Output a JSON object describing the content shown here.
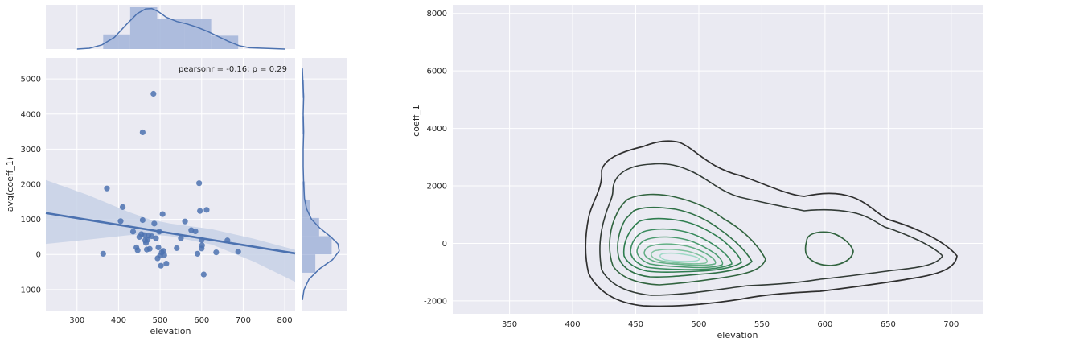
{
  "theme": {
    "panel_bg": "#EAEAF2",
    "grid": "#FFFFFF",
    "accent": "#4C72B0",
    "accent_light": "#A6B7DA",
    "band": "#C7D1E6",
    "contour_dark": "#2F2F2F",
    "contour_green": "#2E7D4F",
    "contour_light": "#9ED9C6"
  },
  "chart_data": [
    {
      "type": "scatter",
      "id": "jointplot",
      "xlabel": "elevation",
      "ylabel": "avg(coeff_1)",
      "annotation": "pearsonr = -0.16; p = 0.29",
      "xlim": [
        225,
        825
      ],
      "ylim": [
        -1600,
        5600
      ],
      "xticks": [
        300,
        400,
        500,
        600,
        700,
        800
      ],
      "yticks": [
        -1000,
        0,
        1000,
        2000,
        3000,
        4000,
        5000
      ],
      "points": [
        [
          363,
          20
        ],
        [
          372,
          1880
        ],
        [
          405,
          950
        ],
        [
          410,
          1350
        ],
        [
          435,
          650
        ],
        [
          443,
          200
        ],
        [
          446,
          120
        ],
        [
          450,
          500
        ],
        [
          455,
          580
        ],
        [
          458,
          3480
        ],
        [
          458,
          980
        ],
        [
          462,
          550
        ],
        [
          464,
          400
        ],
        [
          466,
          330
        ],
        [
          468,
          140
        ],
        [
          470,
          420
        ],
        [
          472,
          540
        ],
        [
          475,
          160
        ],
        [
          480,
          520
        ],
        [
          484,
          4580
        ],
        [
          486,
          880
        ],
        [
          490,
          460
        ],
        [
          494,
          -110
        ],
        [
          496,
          200
        ],
        [
          498,
          650
        ],
        [
          500,
          -30
        ],
        [
          502,
          -320
        ],
        [
          504,
          60
        ],
        [
          506,
          1150
        ],
        [
          508,
          100
        ],
        [
          510,
          -20
        ],
        [
          515,
          -260
        ],
        [
          540,
          180
        ],
        [
          550,
          460
        ],
        [
          560,
          940
        ],
        [
          575,
          690
        ],
        [
          585,
          660
        ],
        [
          590,
          20
        ],
        [
          594,
          2030
        ],
        [
          596,
          1240
        ],
        [
          600,
          170
        ],
        [
          600,
          410
        ],
        [
          601,
          260
        ],
        [
          605,
          -570
        ],
        [
          612,
          1270
        ],
        [
          635,
          60
        ],
        [
          662,
          400
        ],
        [
          688,
          80
        ]
      ],
      "regression": {
        "x": [
          225,
          825
        ],
        "y": [
          1180,
          30
        ]
      },
      "ci_band": {
        "x": [
          225,
          325,
          425,
          475,
          525,
          625,
          725,
          825
        ],
        "upper": [
          2120,
          1700,
          1210,
          1000,
          880,
          720,
          450,
          130
        ],
        "lower": [
          300,
          420,
          550,
          570,
          520,
          280,
          -200,
          -780
        ]
      },
      "marginal_x": {
        "hist_bins": [
          [
            363,
            428,
            0.35
          ],
          [
            428,
            493,
            1.0
          ],
          [
            493,
            558,
            0.72
          ],
          [
            558,
            623,
            0.72
          ],
          [
            623,
            688,
            0.32
          ]
        ],
        "kde": [
          [
            300,
            0.0
          ],
          [
            330,
            0.02
          ],
          [
            360,
            0.1
          ],
          [
            390,
            0.28
          ],
          [
            420,
            0.6
          ],
          [
            445,
            0.85
          ],
          [
            465,
            0.96
          ],
          [
            480,
            0.97
          ],
          [
            495,
            0.9
          ],
          [
            515,
            0.76
          ],
          [
            540,
            0.66
          ],
          [
            565,
            0.6
          ],
          [
            590,
            0.52
          ],
          [
            615,
            0.42
          ],
          [
            640,
            0.3
          ],
          [
            665,
            0.18
          ],
          [
            690,
            0.08
          ],
          [
            715,
            0.03
          ],
          [
            800,
            0.0
          ]
        ]
      },
      "marginal_y": {
        "hist_bins": [
          [
            -520,
            0,
            0.31
          ],
          [
            0,
            520,
            0.7
          ],
          [
            520,
            1040,
            0.4
          ],
          [
            1040,
            1560,
            0.19
          ],
          [
            1560,
            2080,
            0.06
          ],
          [
            2080,
            2600,
            0.0
          ],
          [
            3420,
            3940,
            0.04
          ],
          [
            4460,
            4980,
            0.04
          ]
        ],
        "kde": [
          [
            -1300,
            0.0
          ],
          [
            -1000,
            0.04
          ],
          [
            -700,
            0.16
          ],
          [
            -400,
            0.42
          ],
          [
            -150,
            0.72
          ],
          [
            100,
            0.88
          ],
          [
            300,
            0.85
          ],
          [
            500,
            0.68
          ],
          [
            750,
            0.42
          ],
          [
            1000,
            0.22
          ],
          [
            1300,
            0.1
          ],
          [
            1600,
            0.05
          ],
          [
            2000,
            0.03
          ],
          [
            2500,
            0.02
          ],
          [
            3000,
            0.02
          ],
          [
            3500,
            0.03
          ],
          [
            4000,
            0.02
          ],
          [
            4500,
            0.03
          ],
          [
            5000,
            0.01
          ],
          [
            5300,
            0.0
          ]
        ]
      }
    },
    {
      "type": "contour",
      "id": "kdeplot",
      "xlabel": "elevation",
      "ylabel": "coeff_1",
      "xlim": [
        305,
        725
      ],
      "ylim": [
        -2450,
        8300
      ],
      "xticks": [
        350,
        400,
        450,
        500,
        550,
        600,
        650,
        700
      ],
      "yticks": [
        -2000,
        0,
        2000,
        4000,
        6000,
        8000
      ],
      "levels": 10
    }
  ]
}
